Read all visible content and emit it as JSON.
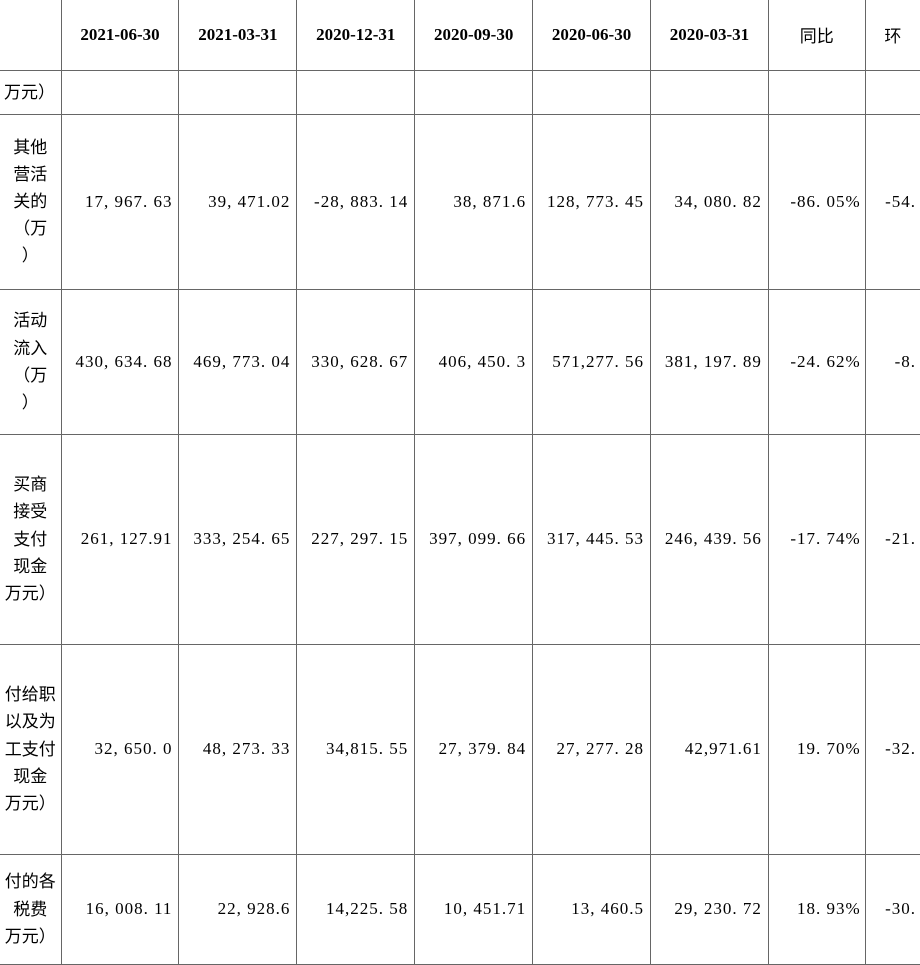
{
  "columns": {
    "label": "",
    "d1": "2021-06-30",
    "d2": "2021-03-31",
    "d3": "2020-12-31",
    "d4": "2020-09-30",
    "d5": "2020-06-30",
    "d6": "2020-03-31",
    "yoy": "同比",
    "qoq": "环"
  },
  "rows": {
    "r0": {
      "label": "万元）",
      "d1": "",
      "d2": "",
      "d3": "",
      "d4": "",
      "d5": "",
      "d6": "",
      "yoy": "",
      "qoq": ""
    },
    "r1": {
      "label": "其他\n营活\n关的\n（万\n）",
      "d1": "17, 967. 63",
      "d2": "39, 471.02",
      "d3": "-28, 883. 14",
      "d4": "38, 871.6",
      "d5": "128, 773. 45",
      "d6": "34, 080. 82",
      "yoy": "-86. 05%",
      "qoq": "-54."
    },
    "r2": {
      "label": "活动\n流入\n（万\n）",
      "d1": "430, 634. 68",
      "d2": "469, 773. 04",
      "d3": "330, 628. 67",
      "d4": "406, 450. 3",
      "d5": "571,277. 56",
      "d6": "381, 197. 89",
      "yoy": "-24. 62%",
      "qoq": "-8."
    },
    "r3": {
      "label": "买商\n 接受\n支付\n现金\n万元）",
      "d1": "261, 127.91",
      "d2": "333, 254. 65",
      "d3": "227, 297. 15",
      "d4": "397, 099. 66",
      "d5": "317, 445. 53",
      "d6": "246, 439. 56",
      "yoy": "-17. 74%",
      "qoq": "-21."
    },
    "r4": {
      "label": "付给职\n以及为\n工支付\n现金\n万元）",
      "d1": "32, 650. 0",
      "d2": "48, 273. 33",
      "d3": "34,815. 55",
      "d4": "27, 379. 84",
      "d5": "27, 277. 28",
      "d6": "42,971.61",
      "yoy": "19. 70%",
      "qoq": "-32."
    },
    "r5": {
      "label": "付的各\n税费\n万元）",
      "d1": "16, 008. 11",
      "d2": "22, 928.6",
      "d3": "14,225. 58",
      "d4": "10, 451.71",
      "d5": "13, 460.5",
      "d6": "29, 230. 72",
      "yoy": "18. 93%",
      "qoq": "-30."
    }
  },
  "style": {
    "border_color": "#666666",
    "background_color": "#ffffff",
    "text_color": "#000000",
    "header_fontsize": 17,
    "cell_fontsize": 17
  }
}
